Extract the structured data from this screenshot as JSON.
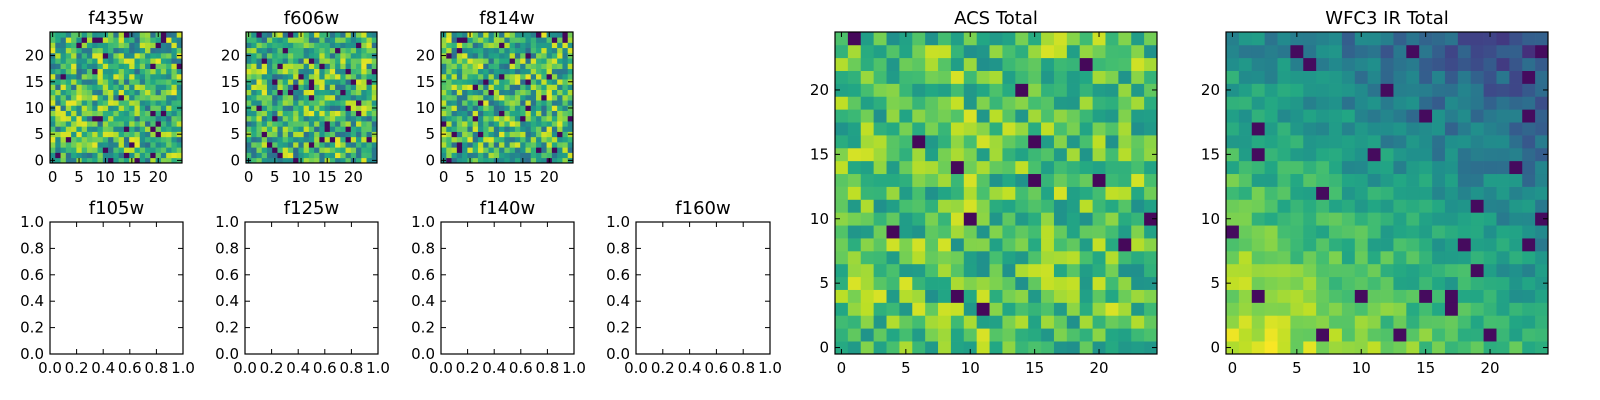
{
  "figure": {
    "description_free": true
  },
  "chart_data": [
    {
      "type": "heatmap",
      "title": "f435w",
      "rows": 25,
      "cols": 25,
      "xlim": [
        -0.5,
        24.5
      ],
      "ylim": [
        -0.5,
        24.5
      ],
      "xticks": [
        0,
        5,
        10,
        15,
        20
      ],
      "yticks": [
        0,
        5,
        10,
        15,
        20
      ],
      "colormap": "viridis",
      "seed": 11,
      "mode": "noise"
    },
    {
      "type": "heatmap",
      "title": "f606w",
      "rows": 25,
      "cols": 25,
      "xlim": [
        -0.5,
        24.5
      ],
      "ylim": [
        -0.5,
        24.5
      ],
      "xticks": [
        0,
        5,
        10,
        15,
        20
      ],
      "yticks": [
        0,
        5,
        10,
        15,
        20
      ],
      "colormap": "viridis",
      "seed": 23,
      "mode": "noise"
    },
    {
      "type": "heatmap",
      "title": "f814w",
      "rows": 25,
      "cols": 25,
      "xlim": [
        -0.5,
        24.5
      ],
      "ylim": [
        -0.5,
        24.5
      ],
      "xticks": [
        0,
        5,
        10,
        15,
        20
      ],
      "yticks": [
        0,
        5,
        10,
        15,
        20
      ],
      "colormap": "viridis",
      "seed": 37,
      "mode": "noise"
    },
    {
      "type": "empty",
      "title": "f105w",
      "xlim": [
        0,
        1
      ],
      "ylim": [
        0,
        1
      ],
      "xticks": [
        "0.0",
        "0.2",
        "0.4",
        "0.6",
        "0.8",
        "1.0"
      ],
      "yticks": [
        "0.0",
        "0.2",
        "0.4",
        "0.6",
        "0.8",
        "1.0"
      ]
    },
    {
      "type": "empty",
      "title": "f125w",
      "xlim": [
        0,
        1
      ],
      "ylim": [
        0,
        1
      ],
      "xticks": [
        "0.0",
        "0.2",
        "0.4",
        "0.6",
        "0.8",
        "1.0"
      ],
      "yticks": [
        "0.0",
        "0.2",
        "0.4",
        "0.6",
        "0.8",
        "1.0"
      ]
    },
    {
      "type": "empty",
      "title": "f140w",
      "xlim": [
        0,
        1
      ],
      "ylim": [
        0,
        1
      ],
      "xticks": [
        "0.0",
        "0.2",
        "0.4",
        "0.6",
        "0.8",
        "1.0"
      ],
      "yticks": [
        "0.0",
        "0.2",
        "0.4",
        "0.6",
        "0.8",
        "1.0"
      ]
    },
    {
      "type": "empty",
      "title": "f160w",
      "xlim": [
        0,
        1
      ],
      "ylim": [
        0,
        1
      ],
      "xticks": [
        "0.0",
        "0.2",
        "0.4",
        "0.6",
        "0.8",
        "1.0"
      ],
      "yticks": [
        "0.0",
        "0.2",
        "0.4",
        "0.6",
        "0.8",
        "1.0"
      ]
    },
    {
      "type": "heatmap",
      "title": "ACS Total",
      "rows": 25,
      "cols": 25,
      "xlim": [
        -0.5,
        24.5
      ],
      "ylim": [
        -0.5,
        24.5
      ],
      "xticks": [
        0,
        5,
        10,
        15,
        20
      ],
      "yticks": [
        0,
        5,
        10,
        15,
        20
      ],
      "colormap": "viridis",
      "seed": 53,
      "mode": "total"
    },
    {
      "type": "heatmap",
      "title": "WFC3 IR Total",
      "rows": 25,
      "cols": 25,
      "xlim": [
        -0.5,
        24.5
      ],
      "ylim": [
        -0.5,
        24.5
      ],
      "xticks": [
        0,
        5,
        10,
        15,
        20
      ],
      "yticks": [
        0,
        5,
        10,
        15,
        20
      ],
      "colormap": "viridis",
      "seed": 71,
      "mode": "gradient"
    }
  ]
}
